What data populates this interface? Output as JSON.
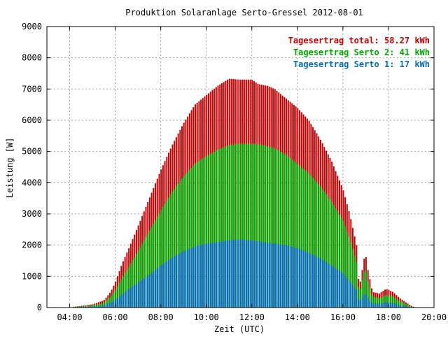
{
  "chart_data": {
    "type": "bar",
    "title": "Produktion Solaranlage Serto-Gressel 2012-08-01",
    "xlabel": "Zeit (UTC)",
    "ylabel": "Leistung [W]",
    "x_range": [
      "03:00",
      "20:00"
    ],
    "xlim": [
      3.0,
      20.0
    ],
    "ylim": [
      0,
      9000
    ],
    "grid": true,
    "legend_position": "top-right",
    "x_ticks": [
      "04:00",
      "06:00",
      "08:00",
      "10:00",
      "12:00",
      "14:00",
      "16:00",
      "18:00",
      "20:00"
    ],
    "x_tick_values": [
      4,
      6,
      8,
      10,
      12,
      14,
      16,
      18,
      20
    ],
    "y_ticks": [
      "0",
      "1000",
      "2000",
      "3000",
      "4000",
      "5000",
      "6000",
      "7000",
      "8000",
      "9000"
    ],
    "y_tick_values": [
      0,
      1000,
      2000,
      3000,
      4000,
      5000,
      6000,
      7000,
      8000,
      9000
    ],
    "interval_minutes": 5,
    "legend": [
      {
        "label": "Tagesertrag total: 58.27 kWh",
        "color": "#cc0000"
      },
      {
        "label": "Tagesertrag Serto 2: 41 kWh",
        "color": "#00aa00"
      },
      {
        "label": "Tagesertrag Serto 1: 17 kWh",
        "color": "#0070c0"
      }
    ],
    "series": [
      {
        "color": "#cc0000",
        "points": [
          [
            4.1,
            20
          ],
          [
            4.5,
            50
          ],
          [
            5.0,
            100
          ],
          [
            5.5,
            230
          ],
          [
            5.8,
            500
          ],
          [
            6.0,
            800
          ],
          [
            6.3,
            1400
          ],
          [
            6.6,
            1900
          ],
          [
            7.0,
            2600
          ],
          [
            7.5,
            3500
          ],
          [
            8.0,
            4400
          ],
          [
            8.5,
            5200
          ],
          [
            9.0,
            5900
          ],
          [
            9.5,
            6500
          ],
          [
            10.0,
            6800
          ],
          [
            10.5,
            7100
          ],
          [
            11.0,
            7330
          ],
          [
            11.5,
            7300
          ],
          [
            12.0,
            7300
          ],
          [
            12.3,
            7150
          ],
          [
            12.7,
            7100
          ],
          [
            13.0,
            7000
          ],
          [
            13.5,
            6700
          ],
          [
            14.0,
            6400
          ],
          [
            14.5,
            6000
          ],
          [
            15.0,
            5400
          ],
          [
            15.5,
            4700
          ],
          [
            16.0,
            3800
          ],
          [
            16.3,
            3000
          ],
          [
            16.6,
            2000
          ],
          [
            16.7,
            700
          ],
          [
            16.8,
            900
          ],
          [
            16.9,
            1500
          ],
          [
            17.0,
            1700
          ],
          [
            17.1,
            1200
          ],
          [
            17.3,
            500
          ],
          [
            17.6,
            450
          ],
          [
            17.9,
            600
          ],
          [
            18.2,
            500
          ],
          [
            18.5,
            300
          ],
          [
            18.8,
            150
          ],
          [
            19.0,
            60
          ],
          [
            19.1,
            30
          ]
        ]
      },
      {
        "color": "#00aa00",
        "points": [
          [
            4.1,
            15
          ],
          [
            4.5,
            35
          ],
          [
            5.0,
            70
          ],
          [
            5.5,
            150
          ],
          [
            5.8,
            350
          ],
          [
            6.0,
            550
          ],
          [
            6.3,
            950
          ],
          [
            6.6,
            1300
          ],
          [
            7.0,
            1800
          ],
          [
            7.5,
            2450
          ],
          [
            8.0,
            3100
          ],
          [
            8.5,
            3700
          ],
          [
            9.0,
            4200
          ],
          [
            9.5,
            4600
          ],
          [
            10.0,
            4850
          ],
          [
            10.5,
            5050
          ],
          [
            11.0,
            5200
          ],
          [
            11.5,
            5250
          ],
          [
            12.0,
            5250
          ],
          [
            12.5,
            5200
          ],
          [
            13.0,
            5100
          ],
          [
            13.5,
            4900
          ],
          [
            14.0,
            4600
          ],
          [
            14.5,
            4300
          ],
          [
            15.0,
            3900
          ],
          [
            15.5,
            3400
          ],
          [
            16.0,
            2800
          ],
          [
            16.3,
            2200
          ],
          [
            16.6,
            1450
          ],
          [
            16.7,
            500
          ],
          [
            16.8,
            650
          ],
          [
            16.9,
            1100
          ],
          [
            17.0,
            1250
          ],
          [
            17.1,
            850
          ],
          [
            17.3,
            350
          ],
          [
            17.6,
            300
          ],
          [
            17.9,
            400
          ],
          [
            18.2,
            350
          ],
          [
            18.5,
            200
          ],
          [
            18.8,
            100
          ],
          [
            19.0,
            40
          ],
          [
            19.1,
            20
          ]
        ]
      },
      {
        "color": "#0070c0",
        "points": [
          [
            4.1,
            5
          ],
          [
            4.5,
            15
          ],
          [
            5.0,
            30
          ],
          [
            5.5,
            70
          ],
          [
            5.8,
            150
          ],
          [
            6.0,
            250
          ],
          [
            6.3,
            420
          ],
          [
            6.6,
            600
          ],
          [
            7.0,
            800
          ],
          [
            7.5,
            1050
          ],
          [
            8.0,
            1350
          ],
          [
            8.5,
            1600
          ],
          [
            9.0,
            1800
          ],
          [
            9.5,
            1950
          ],
          [
            10.0,
            2050
          ],
          [
            10.5,
            2100
          ],
          [
            11.0,
            2150
          ],
          [
            11.5,
            2180
          ],
          [
            12.0,
            2150
          ],
          [
            12.5,
            2100
          ],
          [
            13.0,
            2050
          ],
          [
            13.5,
            2000
          ],
          [
            14.0,
            1900
          ],
          [
            14.5,
            1750
          ],
          [
            15.0,
            1580
          ],
          [
            15.5,
            1350
          ],
          [
            16.0,
            1100
          ],
          [
            16.3,
            850
          ],
          [
            16.6,
            550
          ],
          [
            16.7,
            200
          ],
          [
            16.8,
            250
          ],
          [
            16.9,
            400
          ],
          [
            17.0,
            450
          ],
          [
            17.1,
            300
          ],
          [
            17.3,
            130
          ],
          [
            17.6,
            120
          ],
          [
            17.9,
            170
          ],
          [
            18.2,
            140
          ],
          [
            18.5,
            80
          ],
          [
            18.8,
            40
          ],
          [
            19.0,
            15
          ],
          [
            19.1,
            8
          ]
        ]
      }
    ]
  }
}
